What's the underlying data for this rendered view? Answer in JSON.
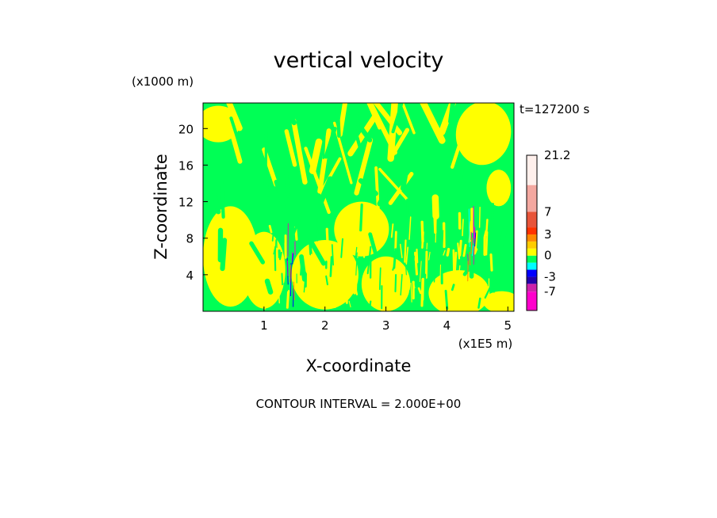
{
  "chart_data": {
    "type": "heatmap",
    "title": "vertical velocity",
    "time_label": "t=127200 s",
    "xlabel": "X-coordinate",
    "ylabel": "Z-coordinate",
    "x_unit": "(x1E5 m)",
    "y_unit": "(x1000 m)",
    "xlim": [
      0,
      5.1
    ],
    "ylim": [
      0,
      22.8
    ],
    "x_ticks": [
      1,
      2,
      3,
      4,
      5
    ],
    "x_tick_labels": [
      "1",
      "2",
      "3",
      "4",
      "5"
    ],
    "y_ticks": [
      4,
      8,
      12,
      16,
      20
    ],
    "y_tick_labels": [
      "4",
      "8",
      "12",
      "16",
      "20"
    ],
    "footer": "CONTOUR INTERVAL = 2.000E+00",
    "contour_interval": 2.0,
    "dominant_levels": [
      {
        "name": "weak updraft (0 to 1)",
        "color": "#ffff00"
      },
      {
        "name": "weak downdraft (-1 to 0)",
        "color": "#00ff55"
      }
    ],
    "colorbar": {
      "vmin": -10,
      "vmax": 21.2,
      "boundaries": [
        -10,
        -7,
        -5,
        -3,
        -2,
        -1,
        0,
        1,
        2,
        3,
        5,
        7,
        14,
        21.2
      ],
      "colors": [
        "#ff00cc",
        "#cc22aa",
        "#2200aa",
        "#0000ff",
        "#00ffff",
        "#00ff55",
        "#ffff00",
        "#ffcc00",
        "#ff8800",
        "#ff3300",
        "#e8553a",
        "#f4a8a0",
        "#fff0ec"
      ],
      "labels": [
        "21.2",
        "7",
        "3",
        "0",
        "-3",
        "-7"
      ],
      "label_values": [
        21.2,
        7,
        3,
        0,
        -3,
        -7
      ]
    },
    "features": [
      {
        "name": "convective column A",
        "x": 1.45,
        "z_range": [
          0.5,
          10
        ]
      },
      {
        "name": "convective column B",
        "x": 4.4,
        "z_range": [
          3,
          11.5
        ]
      }
    ],
    "colors": {
      "green": "#00ff55",
      "yellow": "#ffff00"
    }
  }
}
